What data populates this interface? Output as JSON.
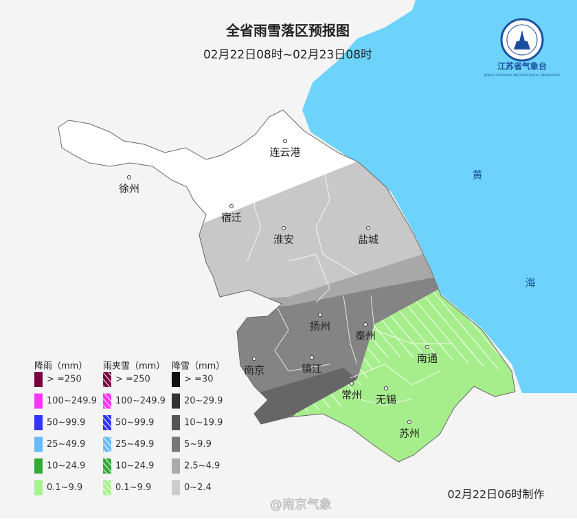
{
  "header": {
    "title": "全省雨雪落区预报图",
    "subtitle": "02月22日08时~02月23日08时"
  },
  "logo": {
    "name": "江苏省气象台",
    "name_en": "JIANGSU PROVINCIAL METEOROLOGICAL OBSERVATORY"
  },
  "sea": [
    "黄",
    "海"
  ],
  "cities": [
    "连云港",
    "徐州",
    "宿迁",
    "淮安",
    "盐城",
    "扬州",
    "泰州",
    "南京",
    "镇江",
    "南通",
    "常州",
    "无锡",
    "苏州"
  ],
  "legend": {
    "groups": [
      {
        "title": "降雨（mm）",
        "items": [
          "> =250",
          "100~249.9",
          "50~99.9",
          "25~49.9",
          "10~24.9",
          "0.1~9.9"
        ]
      },
      {
        "title": "雨夹雪（mm）",
        "items": [
          "> =250",
          "100~249.9",
          "50~99.9",
          "25~49.9",
          "10~24.9",
          "0.1~9.9"
        ]
      },
      {
        "title": "降雪（mm）",
        "items": [
          "> =30",
          "20~29.9",
          "10~19.9",
          "5~9.9",
          "2.5~4.9",
          "0~2.4"
        ]
      }
    ]
  },
  "footer": {
    "made": "02月22日06时制作",
    "watermark": "@南京气象"
  }
}
